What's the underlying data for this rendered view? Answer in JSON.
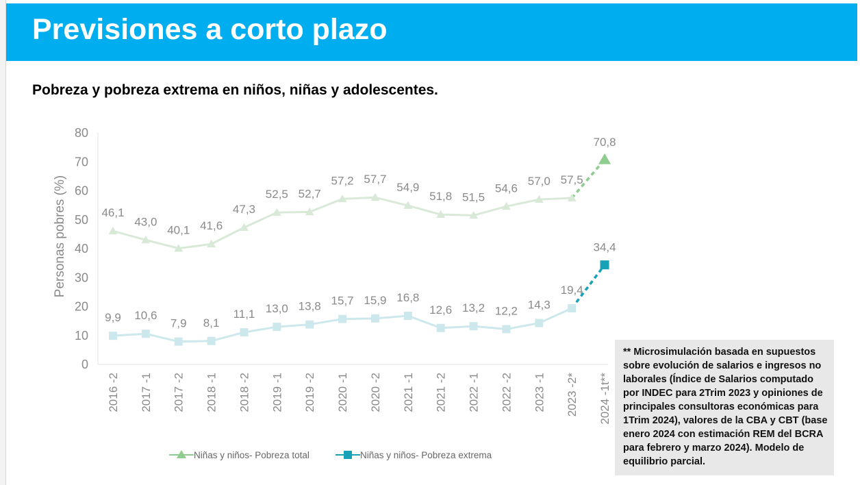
{
  "header": {
    "title": "Previsiones a corto plazo"
  },
  "subtitle": "Pobreza y pobreza extrema en niños, niñas y adolescentes.",
  "note": "** Microsimulación basada en supuestos sobre evolución de salarios e ingresos no laborales (Índice de Salarios computado por INDEC para 2Trim 2023 y opiniones de principales consultoras económicas para 1Trim 2024), valores de la CBA y CBT (base enero 2024 con estimación REM del BCRA para febrero y marzo 2024). Modelo de equilibrio parcial.",
  "chart_data": {
    "type": "line",
    "title": "",
    "xlabel": "",
    "ylabel": "Personas pobres (%)",
    "ylim": [
      0,
      80
    ],
    "yticks": [
      "0",
      "10",
      "20",
      "30",
      "40",
      "50",
      "60",
      "70",
      "80"
    ],
    "grid": false,
    "legend_position": "bottom",
    "categories": [
      "2016 -2",
      "2017 -1",
      "2017 -2",
      "2018 -1",
      "2018 -2",
      "2019 -1",
      "2019 -2",
      "2020 -1",
      "2020 -2",
      "2021 -1",
      "2021 -2",
      "2022 -1",
      "2022 -2",
      "2023 -1",
      "2023 -2*",
      "2024 -1t**"
    ],
    "series": [
      {
        "name": "Niñas y niños- Pobreza total",
        "marker": "triangle",
        "color": "#d8ead7",
        "projection_color": "#8fcc8f",
        "values": [
          46.1,
          43.0,
          40.1,
          41.6,
          47.3,
          52.5,
          52.7,
          57.2,
          57.7,
          54.9,
          51.8,
          51.5,
          54.6,
          57.0,
          57.5,
          70.8
        ],
        "labels": [
          "46,1",
          "43,0",
          "40,1",
          "41,6",
          "47,3",
          "52,5",
          "52,7",
          "57,2",
          "57,7",
          "54,9",
          "51,8",
          "51,5",
          "54,6",
          "57,0",
          "57,5",
          "70,8"
        ],
        "projected_from_index": 14
      },
      {
        "name": "Niñas y niños- Pobreza extrema",
        "marker": "square",
        "color": "#cde8ec",
        "projection_color": "#17a2b8",
        "values": [
          9.9,
          10.6,
          7.9,
          8.1,
          11.1,
          13.0,
          13.8,
          15.7,
          15.9,
          16.8,
          12.6,
          13.2,
          12.2,
          14.3,
          19.4,
          34.4
        ],
        "labels": [
          "9,9",
          "10,6",
          "7,9",
          "8,1",
          "11,1",
          "13,0",
          "13,8",
          "15,7",
          "15,9",
          "16,8",
          "12,6",
          "13,2",
          "12,2",
          "14,3",
          "19,4",
          "34,4"
        ],
        "projected_from_index": 14
      }
    ]
  }
}
